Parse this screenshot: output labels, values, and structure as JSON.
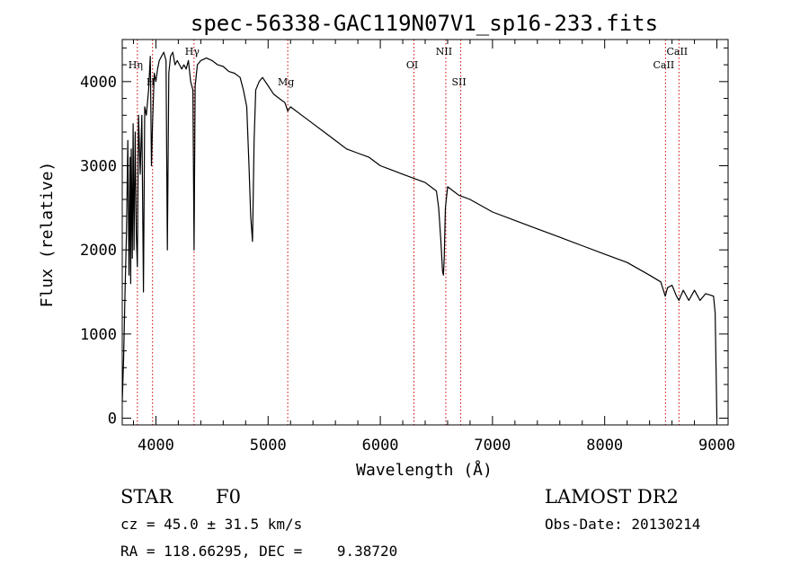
{
  "figure": {
    "title": "spec-56338-GAC119N07V1_sp16-233.fits",
    "class_label": "STAR",
    "subclass_label": "F0",
    "survey_label": "LAMOST DR2",
    "cz_text": "cz = 45.0 ± 31.5 km/s",
    "obs_date_text": "Obs-Date: 20130214",
    "coords_text": "RA = 118.66295, DEC =    9.38720"
  },
  "chart_data": {
    "type": "line",
    "title": "spec-56338-GAC119N07V1_sp16-233.fits",
    "xlabel": "Wavelength (Å)",
    "ylabel": "Flux (relative)",
    "xlim": [
      3700,
      9100
    ],
    "ylim": [
      -80,
      4500
    ],
    "xticks": [
      4000,
      5000,
      6000,
      7000,
      8000,
      9000
    ],
    "yticks": [
      0,
      1000,
      2000,
      3000,
      4000
    ],
    "line_color": "#000000",
    "marker_color": "#cc0000",
    "spectral_lines": [
      {
        "name": "Hη",
        "wavelength": 3835,
        "row": 0
      },
      {
        "name": "H",
        "wavelength": 3970,
        "row": 1
      },
      {
        "name": "Hγ",
        "wavelength": 4340,
        "row": 2
      },
      {
        "name": "Mg",
        "wavelength": 5175,
        "row": 1
      },
      {
        "name": "OI",
        "wavelength": 6300,
        "row": 0
      },
      {
        "name": "NII",
        "wavelength": 6584,
        "row": 2
      },
      {
        "name": "SII",
        "wavelength": 6717,
        "row": 1
      },
      {
        "name": "CaII",
        "wavelength": 8542,
        "row": 0
      },
      {
        "name": "CaII",
        "wavelength": 8662,
        "row": 2
      }
    ],
    "series": [
      {
        "x": [
          3700,
          3712,
          3725,
          3738,
          3750,
          3760,
          3770,
          3775,
          3780,
          3790,
          3797,
          3805,
          3815,
          3825,
          3835,
          3845,
          3860,
          3875,
          3889,
          3900,
          3915,
          3935,
          3950,
          3960,
          3970,
          3985,
          4000,
          4015,
          4030,
          4050,
          4070,
          4090,
          4102,
          4115,
          4130,
          4150,
          4170,
          4190,
          4210,
          4230,
          4250,
          4270,
          4290,
          4310,
          4330,
          4340,
          4350,
          4370,
          4400,
          4450,
          4500,
          4550,
          4600,
          4650,
          4700,
          4750,
          4780,
          4810,
          4830,
          4845,
          4861,
          4875,
          4890,
          4920,
          4950,
          5000,
          5050,
          5100,
          5150,
          5175,
          5200,
          5300,
          5400,
          5500,
          5600,
          5700,
          5800,
          5900,
          6000,
          6100,
          6200,
          6300,
          6400,
          6450,
          6500,
          6520,
          6540,
          6555,
          6563,
          6570,
          6580,
          6600,
          6650,
          6700,
          6800,
          7000,
          7200,
          7400,
          7600,
          7800,
          8000,
          8200,
          8400,
          8500,
          8540,
          8560,
          8600,
          8640,
          8662,
          8700,
          8750,
          8800,
          8850,
          8900,
          8950,
          8970,
          8985,
          8995,
          9000
        ],
        "y": [
          200,
          700,
          1500,
          2200,
          3300,
          1700,
          3100,
          1600,
          3200,
          1900,
          3500,
          2000,
          3400,
          2200,
          1800,
          3600,
          2900,
          3600,
          1500,
          3700,
          3600,
          3900,
          4300,
          3000,
          3500,
          4100,
          4000,
          4150,
          4250,
          4300,
          4350,
          4250,
          2000,
          4100,
          4300,
          4350,
          4200,
          4250,
          4200,
          4150,
          4200,
          4150,
          4250,
          4000,
          3900,
          2000,
          3950,
          4200,
          4250,
          4280,
          4250,
          4200,
          4180,
          4120,
          4100,
          4050,
          3900,
          3700,
          3000,
          2400,
          2100,
          3300,
          3900,
          4000,
          4050,
          3950,
          3850,
          3800,
          3750,
          3650,
          3700,
          3600,
          3500,
          3400,
          3300,
          3200,
          3150,
          3100,
          3000,
          2950,
          2900,
          2850,
          2800,
          2750,
          2700,
          2500,
          2100,
          1750,
          1700,
          1900,
          2500,
          2750,
          2700,
          2650,
          2600,
          2450,
          2350,
          2250,
          2150,
          2050,
          1950,
          1850,
          1700,
          1620,
          1450,
          1550,
          1580,
          1450,
          1400,
          1520,
          1400,
          1520,
          1400,
          1480,
          1460,
          1450,
          1250,
          400,
          0
        ]
      }
    ]
  }
}
